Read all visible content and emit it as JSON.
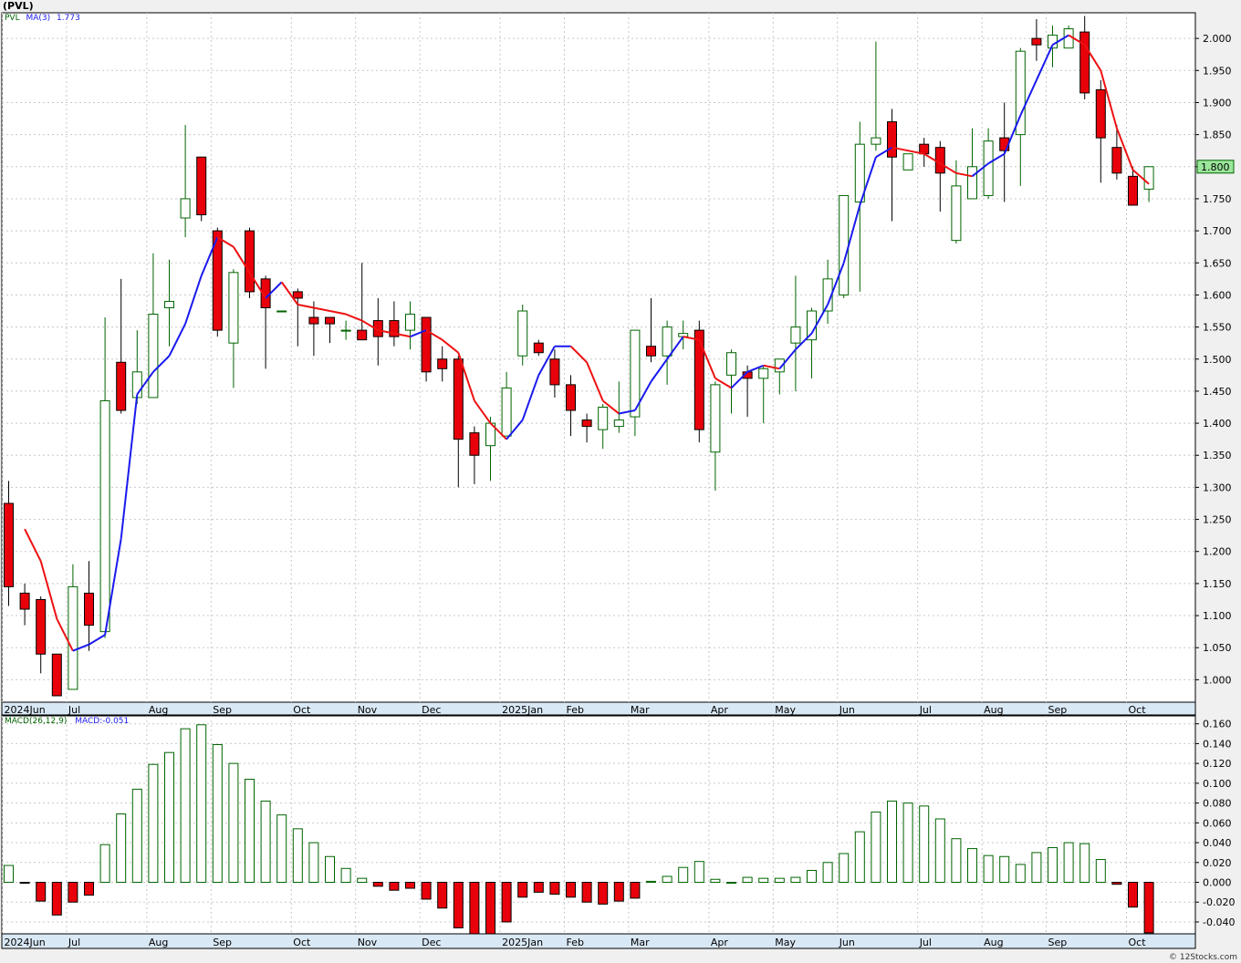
{
  "chart_title": "(PVL)",
  "price_panel": {
    "legend_symbol": "PVL",
    "legend_ma_label": "MA(3)",
    "legend_ma_value": "1.773",
    "last_price_label": "1.800",
    "ylim": [
      0.965,
      2.04
    ],
    "y_ticks": [
      "1.000",
      "1.050",
      "1.100",
      "1.150",
      "1.200",
      "1.250",
      "1.300",
      "1.350",
      "1.400",
      "1.450",
      "1.500",
      "1.550",
      "1.600",
      "1.650",
      "1.700",
      "1.750",
      "1.800",
      "1.850",
      "1.900",
      "1.950",
      "2.000"
    ]
  },
  "macd_panel": {
    "legend_label": "MACD(26,12,9)",
    "legend_value_label": "MACD:-0.051",
    "ylim": [
      -0.052,
      0.168
    ],
    "y_ticks": [
      "0.160",
      "0.140",
      "0.120",
      "0.100",
      "0.080",
      "0.060",
      "0.040",
      "0.020",
      "0.000",
      "-0.020",
      "-0.040"
    ]
  },
  "x_axis": {
    "month_labels": [
      {
        "label": "2024Jun",
        "week": 0
      },
      {
        "label": "Jul",
        "week": 4
      },
      {
        "label": "Aug",
        "week": 9
      },
      {
        "label": "Sep",
        "week": 13
      },
      {
        "label": "Oct",
        "week": 18
      },
      {
        "label": "Nov",
        "week": 22
      },
      {
        "label": "Dec",
        "week": 26
      },
      {
        "label": "2025Jan",
        "week": 31
      },
      {
        "label": "Feb",
        "week": 35
      },
      {
        "label": "Mar",
        "week": 39
      },
      {
        "label": "Apr",
        "week": 44
      },
      {
        "label": "May",
        "week": 48
      },
      {
        "label": "Jun",
        "week": 52
      },
      {
        "label": "Jul",
        "week": 57
      },
      {
        "label": "Aug",
        "week": 61
      },
      {
        "label": "Sep",
        "week": 65
      },
      {
        "label": "Oct",
        "week": 70
      }
    ]
  },
  "credit": "© 12Stocks.com",
  "colors": {
    "up_body": "#ffffff",
    "up_outline": "#006400",
    "down_body": "#e8000a",
    "ma_up": "#1a1aee",
    "ma_down": "#ee1111",
    "macd_positive": "#006400",
    "macd_negative": "#e8000a",
    "last_price_bg": "#9be69b"
  },
  "chart_data": [
    {
      "type": "candlestick",
      "title": "(PVL)",
      "series": [
        {
          "name": "PVL",
          "fields": [
            "open",
            "high",
            "low",
            "close"
          ],
          "values": [
            [
              1.275,
              1.31,
              1.115,
              1.145
            ],
            [
              1.135,
              1.15,
              1.085,
              1.11
            ],
            [
              1.125,
              1.13,
              1.01,
              1.04
            ],
            [
              1.04,
              1.04,
              0.975,
              0.975
            ],
            [
              0.985,
              1.18,
              0.985,
              1.145
            ],
            [
              1.135,
              1.185,
              1.045,
              1.085
            ],
            [
              1.075,
              1.565,
              1.065,
              1.435
            ],
            [
              1.495,
              1.625,
              1.415,
              1.42
            ],
            [
              1.44,
              1.545,
              1.43,
              1.48
            ],
            [
              1.44,
              1.665,
              1.44,
              1.57
            ],
            [
              1.58,
              1.655,
              1.52,
              1.59
            ],
            [
              1.72,
              1.865,
              1.69,
              1.75
            ],
            [
              1.815,
              1.815,
              1.715,
              1.725
            ],
            [
              1.7,
              1.705,
              1.535,
              1.545
            ],
            [
              1.525,
              1.64,
              1.455,
              1.635
            ],
            [
              1.7,
              1.705,
              1.595,
              1.605
            ],
            [
              1.625,
              1.63,
              1.485,
              1.58
            ],
            [
              1.575,
              1.575,
              1.575,
              1.575
            ],
            [
              1.605,
              1.61,
              1.52,
              1.595
            ],
            [
              1.565,
              1.59,
              1.505,
              1.555
            ],
            [
              1.565,
              1.565,
              1.525,
              1.555
            ],
            [
              1.545,
              1.56,
              1.53,
              1.545
            ],
            [
              1.545,
              1.65,
              1.53,
              1.53
            ],
            [
              1.56,
              1.595,
              1.49,
              1.535
            ],
            [
              1.56,
              1.59,
              1.52,
              1.535
            ],
            [
              1.545,
              1.59,
              1.515,
              1.57
            ],
            [
              1.565,
              1.565,
              1.465,
              1.48
            ],
            [
              1.5,
              1.52,
              1.465,
              1.485
            ],
            [
              1.5,
              1.505,
              1.3,
              1.375
            ],
            [
              1.385,
              1.395,
              1.305,
              1.35
            ],
            [
              1.365,
              1.41,
              1.31,
              1.4
            ],
            [
              1.38,
              1.48,
              1.38,
              1.455
            ],
            [
              1.505,
              1.585,
              1.49,
              1.575
            ],
            [
              1.525,
              1.53,
              1.505,
              1.51
            ],
            [
              1.5,
              1.515,
              1.44,
              1.46
            ],
            [
              1.46,
              1.475,
              1.38,
              1.42
            ],
            [
              1.405,
              1.415,
              1.37,
              1.395
            ],
            [
              1.39,
              1.43,
              1.36,
              1.425
            ],
            [
              1.395,
              1.465,
              1.385,
              1.405
            ],
            [
              1.41,
              1.545,
              1.38,
              1.545
            ],
            [
              1.52,
              1.595,
              1.495,
              1.505
            ],
            [
              1.505,
              1.56,
              1.46,
              1.55
            ],
            [
              1.535,
              1.56,
              1.515,
              1.54
            ],
            [
              1.545,
              1.56,
              1.37,
              1.39
            ],
            [
              1.355,
              1.465,
              1.295,
              1.46
            ],
            [
              1.475,
              1.515,
              1.415,
              1.51
            ],
            [
              1.48,
              1.49,
              1.41,
              1.47
            ],
            [
              1.47,
              1.49,
              1.4,
              1.485
            ],
            [
              1.48,
              1.5,
              1.445,
              1.5
            ],
            [
              1.525,
              1.63,
              1.45,
              1.55
            ],
            [
              1.53,
              1.58,
              1.47,
              1.575
            ],
            [
              1.575,
              1.655,
              1.555,
              1.625
            ],
            [
              1.6,
              1.755,
              1.595,
              1.755
            ],
            [
              1.745,
              1.87,
              1.605,
              1.835
            ],
            [
              1.835,
              1.995,
              1.825,
              1.845
            ],
            [
              1.87,
              1.89,
              1.715,
              1.815
            ],
            [
              1.795,
              1.82,
              1.795,
              1.82
            ],
            [
              1.835,
              1.845,
              1.8,
              1.82
            ],
            [
              1.83,
              1.84,
              1.73,
              1.79
            ],
            [
              1.685,
              1.81,
              1.68,
              1.77
            ],
            [
              1.75,
              1.86,
              1.75,
              1.8
            ],
            [
              1.755,
              1.86,
              1.75,
              1.84
            ],
            [
              1.845,
              1.9,
              1.745,
              1.825
            ],
            [
              1.85,
              1.985,
              1.77,
              1.98
            ],
            [
              2.0,
              2.03,
              1.965,
              1.99
            ],
            [
              1.985,
              2.02,
              1.955,
              2.005
            ],
            [
              1.985,
              2.02,
              1.985,
              2.015
            ],
            [
              2.01,
              2.035,
              1.905,
              1.915
            ],
            [
              1.92,
              1.935,
              1.775,
              1.845
            ],
            [
              1.83,
              1.865,
              1.78,
              1.79
            ],
            [
              1.785,
              1.8,
              1.74,
              1.74
            ],
            [
              1.765,
              1.8,
              1.745,
              1.8
            ]
          ]
        },
        {
          "name": "MA(3)",
          "values": [
            null,
            1.235,
            1.185,
            1.095,
            1.045,
            1.055,
            1.07,
            1.22,
            1.445,
            1.48,
            1.505,
            1.555,
            1.63,
            1.69,
            1.675,
            1.635,
            1.595,
            1.62,
            1.585,
            1.58,
            1.575,
            1.57,
            1.56,
            1.545,
            1.54,
            1.535,
            1.545,
            1.53,
            1.51,
            1.435,
            1.4,
            1.375,
            1.405,
            1.475,
            1.52,
            1.52,
            1.495,
            1.435,
            1.415,
            1.42,
            1.465,
            1.5,
            1.535,
            1.53,
            1.47,
            1.455,
            1.48,
            1.49,
            1.485,
            1.515,
            1.54,
            1.585,
            1.65,
            1.74,
            1.815,
            1.83,
            1.825,
            1.82,
            1.805,
            1.79,
            1.785,
            1.805,
            1.82,
            1.88,
            1.935,
            1.99,
            2.005,
            1.99,
            1.95,
            1.86,
            1.795,
            1.773
          ]
        }
      ]
    },
    {
      "type": "bar",
      "title": "MACD(26,12,9)",
      "series": [
        {
          "name": "MACD",
          "values": [
            0.017,
            -0.001,
            -0.019,
            -0.033,
            -0.02,
            -0.013,
            0.038,
            0.069,
            0.094,
            0.119,
            0.131,
            0.155,
            0.159,
            0.139,
            0.12,
            0.104,
            0.082,
            0.068,
            0.054,
            0.04,
            0.026,
            0.014,
            0.004,
            -0.004,
            -0.008,
            -0.006,
            -0.017,
            -0.026,
            -0.046,
            -0.052,
            -0.052,
            -0.04,
            -0.015,
            -0.01,
            -0.012,
            -0.015,
            -0.02,
            -0.022,
            -0.019,
            -0.016,
            0.001,
            0.006,
            0.015,
            0.021,
            0.003,
            0.0,
            0.005,
            0.004,
            0.004,
            0.005,
            0.012,
            0.02,
            0.029,
            0.051,
            0.071,
            0.082,
            0.08,
            0.077,
            0.064,
            0.044,
            0.034,
            0.027,
            0.026,
            0.018,
            0.03,
            0.035,
            0.04,
            0.039,
            0.023,
            -0.002,
            -0.025,
            -0.051
          ]
        }
      ]
    }
  ]
}
